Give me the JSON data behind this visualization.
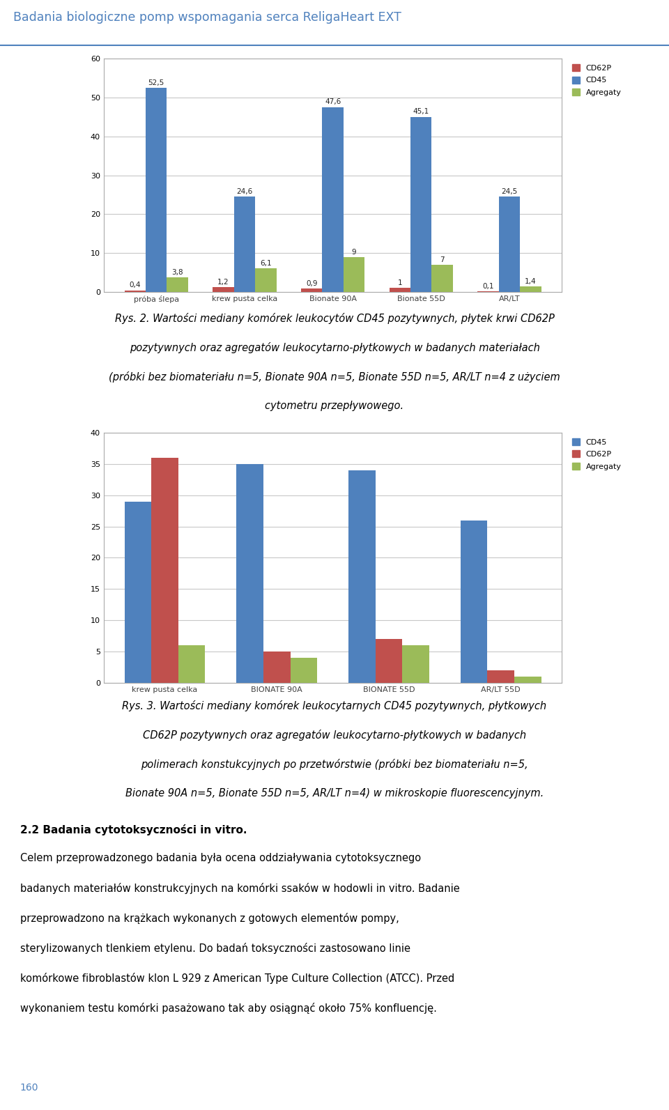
{
  "page_title": "Badania biologiczne pomp wspomagania serca ReligaHeart EXT",
  "page_num": "160",
  "chart1": {
    "categories": [
      "próba ślepa",
      "krew pusta celka",
      "Bionate 90A",
      "Bionate 55D",
      "AR/LT"
    ],
    "cd62p": [
      0.4,
      1.2,
      0.9,
      1.0,
      0.1
    ],
    "cd45": [
      52.5,
      24.6,
      47.6,
      45.1,
      24.5
    ],
    "agregaty": [
      3.8,
      6.1,
      9.0,
      7.0,
      1.4
    ],
    "cd62p_labels": [
      "0,4",
      "1,2",
      "0,9",
      "1",
      "0,1"
    ],
    "cd45_labels": [
      "52,5",
      "24,6",
      "47,6",
      "45,1",
      "24,5"
    ],
    "agregaty_labels": [
      "3,8",
      "6,1",
      "9",
      "7",
      "1,4"
    ],
    "ylim": [
      0,
      60
    ],
    "yticks": [
      0,
      10,
      20,
      30,
      40,
      50,
      60
    ],
    "colors": {
      "CD62P": "#c0504d",
      "CD45": "#4f81bd",
      "Agregaty": "#9bbb59"
    }
  },
  "caption1": [
    "Rys. 2. Wartości mediany komórek leukocytów CD45 pozytywnych, płytek krwi CD62P",
    "pozytywnych oraz agregatów leukocytarno-płytkowych w badanych materiałach",
    "(próbki bez biomateriału n=5, Bionate 90A n=5, Bionate 55D n=5, AR/LT n=4 z użyciem",
    "cytometru przepływowego."
  ],
  "chart2": {
    "categories": [
      "krew pusta celka",
      "BIONATE 90A",
      "BIONATE 55D",
      "AR/LT 55D"
    ],
    "cd45": [
      29.0,
      35.0,
      34.0,
      26.0
    ],
    "cd62p": [
      36.0,
      5.0,
      7.0,
      2.0
    ],
    "agregaty": [
      6.0,
      4.0,
      6.0,
      1.0
    ],
    "ylim": [
      0,
      40
    ],
    "yticks": [
      0,
      5,
      10,
      15,
      20,
      25,
      30,
      35,
      40
    ],
    "colors": {
      "CD45": "#4f81bd",
      "CD62P": "#c0504d",
      "Agregaty": "#9bbb59"
    }
  },
  "caption2_lines": [
    "Rys. 3. Wartości mediany komórek leukocytarnych CD45 pozytywnych, płytkowych",
    "CD62P pozytywnych oraz agregatów leukocytarno-płytkowych w badanych",
    "polimerach konstukcyjnych po przetwórstwie (próbki bez biomateriału n=5,",
    "Bionate 90A n=5, Bionate 55D n=5, AR/LT n=4) w mikroskopie fluorescencyjnym."
  ],
  "section_title": "2.2 Badania cytotoksyczności in vitro.",
  "body_lines": [
    "Celem przeprowadzonego badania była ocena oddziaływania cytotoksycznego",
    "badanych materiałów konstrukcyjnych na komórki ssaków w hodowli in vitro. Badanie",
    "przeprowadzono na krążkach wykonanych z gotowych elementów pompy,",
    "sterylizowanych tlenkiem etylenu. Do badań toksyczności zastosowano linie",
    "komórkowe fibroblastów klon L 929 z American Type Culture Collection (ATCC). Przed",
    "wykonaniem testu komórki pasażowano tak aby osiągnąć około 75% konfluencję."
  ],
  "background_color": "#ffffff",
  "header_color": "#4f81bd",
  "header_line_color": "#4f81bd",
  "chart_bg": "#ffffff",
  "chart_border": "#aaaaaa",
  "grid_color": "#c8c8c8",
  "axis_label_color": "#404040",
  "bar_label_fontsize": 7.5,
  "axis_tick_fontsize": 8,
  "legend_fontsize": 8,
  "caption_fontsize": 10.5,
  "section_fontsize": 11,
  "body_fontsize": 10.5
}
